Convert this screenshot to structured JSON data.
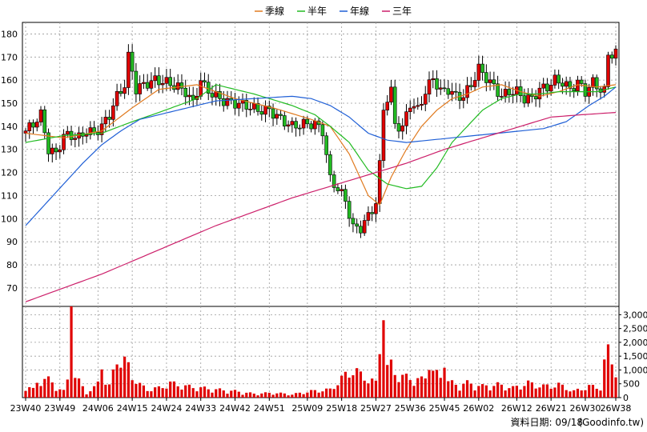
{
  "chart_data": {
    "type": "candlestick",
    "legend": [
      {
        "name": "季線",
        "color": "#e07a1f"
      },
      {
        "name": "半年",
        "color": "#22bb22"
      },
      {
        "name": "年線",
        "color": "#1f5fd6"
      },
      {
        "name": "三年",
        "color": "#cc1f6a"
      }
    ],
    "price_axis": {
      "ticks": [
        70,
        80,
        90,
        100,
        110,
        120,
        130,
        140,
        150,
        160,
        170,
        180
      ],
      "ylim": [
        62,
        185
      ]
    },
    "volume_axis": {
      "ticks": [
        0,
        500,
        1000,
        1500,
        2000,
        2500,
        3000
      ],
      "tick_labels": [
        "0",
        "500",
        "1,000",
        "1,500",
        "2,000",
        "2,500",
        "3,000"
      ],
      "ylim": [
        0,
        3300
      ]
    },
    "x_tick_labels": [
      "23W40",
      "23W49",
      "24W06",
      "24W15",
      "24W24",
      "24W33",
      "24W42",
      "24W51",
      "25W09",
      "25W18",
      "25W27",
      "25W36",
      "25W45",
      "26W02",
      "26W12",
      "26W21",
      "26W30",
      "26W38"
    ],
    "x_tick_index": [
      0,
      9,
      19,
      28,
      37,
      46,
      55,
      64,
      74,
      83,
      92,
      101,
      110,
      119,
      129,
      138,
      147,
      155
    ],
    "weeks": 156,
    "close_anchors": [
      [
        0,
        138
      ],
      [
        2,
        141
      ],
      [
        4,
        145
      ],
      [
        6,
        130
      ],
      [
        8,
        128
      ],
      [
        10,
        136
      ],
      [
        12,
        136
      ],
      [
        14,
        135
      ],
      [
        16,
        138
      ],
      [
        18,
        137
      ],
      [
        20,
        140
      ],
      [
        22,
        145
      ],
      [
        24,
        153
      ],
      [
        26,
        158
      ],
      [
        27,
        170
      ],
      [
        28,
        164
      ],
      [
        29,
        156
      ],
      [
        31,
        158
      ],
      [
        34,
        160
      ],
      [
        37,
        159
      ],
      [
        40,
        157
      ],
      [
        42,
        155
      ],
      [
        44,
        150
      ],
      [
        46,
        160
      ],
      [
        47,
        157
      ],
      [
        49,
        154
      ],
      [
        52,
        151
      ],
      [
        55,
        150
      ],
      [
        58,
        149
      ],
      [
        61,
        147
      ],
      [
        64,
        147
      ],
      [
        67,
        143
      ],
      [
        70,
        140
      ],
      [
        73,
        141
      ],
      [
        76,
        141
      ],
      [
        78,
        138
      ],
      [
        80,
        117
      ],
      [
        82,
        113
      ],
      [
        84,
        108
      ],
      [
        86,
        96
      ],
      [
        88,
        96
      ],
      [
        90,
        101
      ],
      [
        91,
        104
      ],
      [
        92,
        107
      ],
      [
        93,
        123
      ],
      [
        94,
        148
      ],
      [
        95,
        152
      ],
      [
        96,
        155
      ],
      [
        97,
        141
      ],
      [
        99,
        139
      ],
      [
        100,
        145
      ],
      [
        101,
        150
      ],
      [
        103,
        147
      ],
      [
        105,
        155
      ],
      [
        107,
        161
      ],
      [
        109,
        155
      ],
      [
        111,
        156
      ],
      [
        113,
        153
      ],
      [
        115,
        153
      ],
      [
        117,
        158
      ],
      [
        119,
        165
      ],
      [
        121,
        161
      ],
      [
        123,
        157
      ],
      [
        125,
        153
      ],
      [
        127,
        155
      ],
      [
        129,
        155
      ],
      [
        131,
        152
      ],
      [
        133,
        152
      ],
      [
        135,
        156
      ],
      [
        137,
        157
      ],
      [
        139,
        160
      ],
      [
        141,
        159
      ],
      [
        143,
        156
      ],
      [
        145,
        159
      ],
      [
        147,
        155
      ],
      [
        149,
        159
      ],
      [
        151,
        156
      ],
      [
        152,
        155
      ],
      [
        153,
        171
      ],
      [
        155,
        172
      ]
    ],
    "volume_profile": [
      [
        0,
        400
      ],
      [
        2,
        250
      ],
      [
        4,
        650
      ],
      [
        6,
        550
      ],
      [
        8,
        350
      ],
      [
        10,
        200
      ],
      [
        12,
        850
      ],
      [
        14,
        500
      ],
      [
        16,
        150
      ],
      [
        18,
        300
      ],
      [
        20,
        600
      ],
      [
        22,
        350
      ],
      [
        24,
        1200
      ],
      [
        26,
        1100
      ],
      [
        28,
        700
      ],
      [
        30,
        400
      ],
      [
        32,
        250
      ],
      [
        35,
        300
      ],
      [
        38,
        450
      ],
      [
        42,
        350
      ],
      [
        46,
        300
      ],
      [
        50,
        250
      ],
      [
        55,
        200
      ],
      [
        60,
        120
      ],
      [
        65,
        150
      ],
      [
        70,
        100
      ],
      [
        75,
        200
      ],
      [
        80,
        250
      ],
      [
        84,
        700
      ],
      [
        86,
        900
      ],
      [
        88,
        700
      ],
      [
        90,
        600
      ],
      [
        92,
        450
      ],
      [
        93,
        1600
      ],
      [
        94,
        2800
      ],
      [
        95,
        1200
      ],
      [
        97,
        800
      ],
      [
        99,
        650
      ],
      [
        101,
        600
      ],
      [
        104,
        550
      ],
      [
        107,
        800
      ],
      [
        110,
        550
      ],
      [
        113,
        400
      ],
      [
        116,
        450
      ],
      [
        120,
        350
      ],
      [
        124,
        400
      ],
      [
        128,
        300
      ],
      [
        132,
        450
      ],
      [
        136,
        350
      ],
      [
        140,
        400
      ],
      [
        144,
        200
      ],
      [
        148,
        350
      ],
      [
        152,
        300
      ],
      [
        153,
        1400
      ],
      [
        155,
        950
      ]
    ],
    "volume_spikes": [
      [
        12,
        3300
      ],
      [
        20,
        1020
      ],
      [
        24,
        1200
      ],
      [
        27,
        1280
      ],
      [
        94,
        2800
      ],
      [
        95,
        1180
      ],
      [
        106,
        1000
      ],
      [
        110,
        1080
      ],
      [
        152,
        1380
      ]
    ],
    "ma_anchors": {
      "季線": [
        [
          0,
          137
        ],
        [
          10,
          135
        ],
        [
          20,
          138
        ],
        [
          28,
          148
        ],
        [
          35,
          156
        ],
        [
          45,
          158
        ],
        [
          55,
          152
        ],
        [
          65,
          148
        ],
        [
          75,
          143
        ],
        [
          80,
          140
        ],
        [
          85,
          128
        ],
        [
          90,
          110
        ],
        [
          93,
          106
        ],
        [
          96,
          118
        ],
        [
          100,
          130
        ],
        [
          104,
          140
        ],
        [
          108,
          147
        ],
        [
          112,
          152
        ],
        [
          116,
          154
        ],
        [
          120,
          157
        ],
        [
          125,
          158
        ],
        [
          130,
          155
        ],
        [
          135,
          153
        ],
        [
          140,
          155
        ],
        [
          145,
          158
        ],
        [
          150,
          157
        ],
        [
          155,
          158
        ]
      ],
      "半年": [
        [
          0,
          133
        ],
        [
          10,
          136
        ],
        [
          20,
          137
        ],
        [
          28,
          142
        ],
        [
          35,
          146
        ],
        [
          45,
          152
        ],
        [
          50,
          158
        ],
        [
          60,
          154
        ],
        [
          70,
          149
        ],
        [
          76,
          145
        ],
        [
          80,
          140
        ],
        [
          85,
          133
        ],
        [
          90,
          121
        ],
        [
          95,
          115
        ],
        [
          100,
          113
        ],
        [
          104,
          114
        ],
        [
          108,
          122
        ],
        [
          112,
          133
        ],
        [
          116,
          140
        ],
        [
          120,
          147
        ],
        [
          125,
          152
        ],
        [
          130,
          154
        ],
        [
          135,
          154
        ],
        [
          140,
          155
        ],
        [
          145,
          155
        ],
        [
          150,
          155
        ],
        [
          155,
          157
        ]
      ],
      "年線": [
        [
          0,
          97
        ],
        [
          5,
          106
        ],
        [
          10,
          115
        ],
        [
          15,
          124
        ],
        [
          20,
          132
        ],
        [
          25,
          138
        ],
        [
          30,
          143
        ],
        [
          35,
          145
        ],
        [
          40,
          147
        ],
        [
          45,
          149
        ],
        [
          50,
          151
        ],
        [
          60,
          152
        ],
        [
          70,
          153
        ],
        [
          75,
          152
        ],
        [
          80,
          149
        ],
        [
          85,
          144
        ],
        [
          90,
          137
        ],
        [
          95,
          134
        ],
        [
          100,
          133
        ],
        [
          106,
          134
        ],
        [
          112,
          135
        ],
        [
          118,
          136
        ],
        [
          124,
          137
        ],
        [
          130,
          138
        ],
        [
          136,
          139
        ],
        [
          142,
          142
        ],
        [
          148,
          149
        ],
        [
          152,
          153
        ],
        [
          155,
          157
        ]
      ],
      "三年": [
        [
          0,
          64
        ],
        [
          10,
          70
        ],
        [
          20,
          76
        ],
        [
          30,
          83
        ],
        [
          40,
          90
        ],
        [
          50,
          97
        ],
        [
          60,
          103
        ],
        [
          70,
          109
        ],
        [
          80,
          114
        ],
        [
          90,
          119
        ],
        [
          100,
          124
        ],
        [
          110,
          130
        ],
        [
          120,
          135
        ],
        [
          130,
          140
        ],
        [
          138,
          144
        ],
        [
          146,
          145
        ],
        [
          155,
          146
        ]
      ]
    }
  },
  "footer": {
    "date_label": "資料日期: 09/18",
    "source": "(Goodinfo.tw)"
  }
}
